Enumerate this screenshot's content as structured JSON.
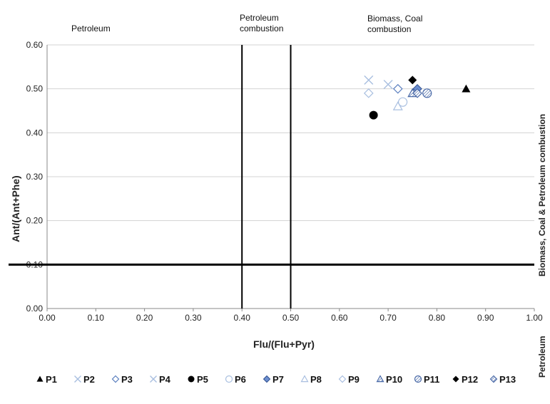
{
  "chart_data": {
    "type": "scatter",
    "xlabel": "Flu/(Flu+Pyr)",
    "ylabel": "Ant/(Ant+Phe)",
    "xlim": [
      0.0,
      1.0
    ],
    "ylim": [
      0.0,
      0.6
    ],
    "x_ticks": [
      "0.00",
      "0.10",
      "0.20",
      "0.30",
      "0.40",
      "0.50",
      "0.60",
      "0.70",
      "0.80",
      "0.90",
      "1.00"
    ],
    "y_ticks": [
      "0.00",
      "0.10",
      "0.20",
      "0.30",
      "0.40",
      "0.50",
      "0.60"
    ],
    "grid": "horizontal",
    "threshold_lines": {
      "x": [
        0.4,
        0.5
      ],
      "y": [
        0.1
      ]
    },
    "region_labels": {
      "petroleum": "Petroleum",
      "petroleum_combustion": [
        "Petroleum",
        "combustion"
      ],
      "biomass_coal_combustion": [
        "Biomass, Coal",
        "combustion"
      ],
      "right_upper": "Biomass, Coal & Petroleum combustion",
      "right_lower": "Petroleum"
    },
    "legend_position": "bottom",
    "series": [
      {
        "name": "P1",
        "marker": "filled-triangle",
        "color": "#000000",
        "x": 0.86,
        "y": 0.5
      },
      {
        "name": "P2",
        "marker": "x",
        "color": "#a9bfe0",
        "x": 0.7,
        "y": 0.51
      },
      {
        "name": "P3",
        "marker": "diamond-outline",
        "color": "#5b7fbf",
        "x": 0.72,
        "y": 0.5
      },
      {
        "name": "P4",
        "marker": "x",
        "color": "#a9bfe0",
        "x": 0.66,
        "y": 0.52
      },
      {
        "name": "P5",
        "marker": "filled-circle",
        "color": "#000000",
        "x": 0.67,
        "y": 0.44
      },
      {
        "name": "P6",
        "marker": "circle-outline",
        "color": "#a9bfe0",
        "x": 0.73,
        "y": 0.47
      },
      {
        "name": "P7",
        "marker": "diamond-filled",
        "color": "#6d8fd0",
        "x": 0.76,
        "y": 0.5
      },
      {
        "name": "P8",
        "marker": "triangle-outline",
        "color": "#a9bfe0",
        "x": 0.72,
        "y": 0.46
      },
      {
        "name": "P9",
        "marker": "diamond-outline",
        "color": "#a9bfe0",
        "x": 0.66,
        "y": 0.49
      },
      {
        "name": "P10",
        "marker": "triangle-hatched",
        "color": "#4a6aa8",
        "x": 0.75,
        "y": 0.49
      },
      {
        "name": "P11",
        "marker": "circle-hatched",
        "color": "#4a6aa8",
        "x": 0.78,
        "y": 0.49
      },
      {
        "name": "P12",
        "marker": "diamond-black",
        "color": "#000000",
        "x": 0.75,
        "y": 0.52
      },
      {
        "name": "P13",
        "marker": "diamond-hatched",
        "color": "#4a6aa8",
        "x": 0.76,
        "y": 0.49
      }
    ]
  }
}
